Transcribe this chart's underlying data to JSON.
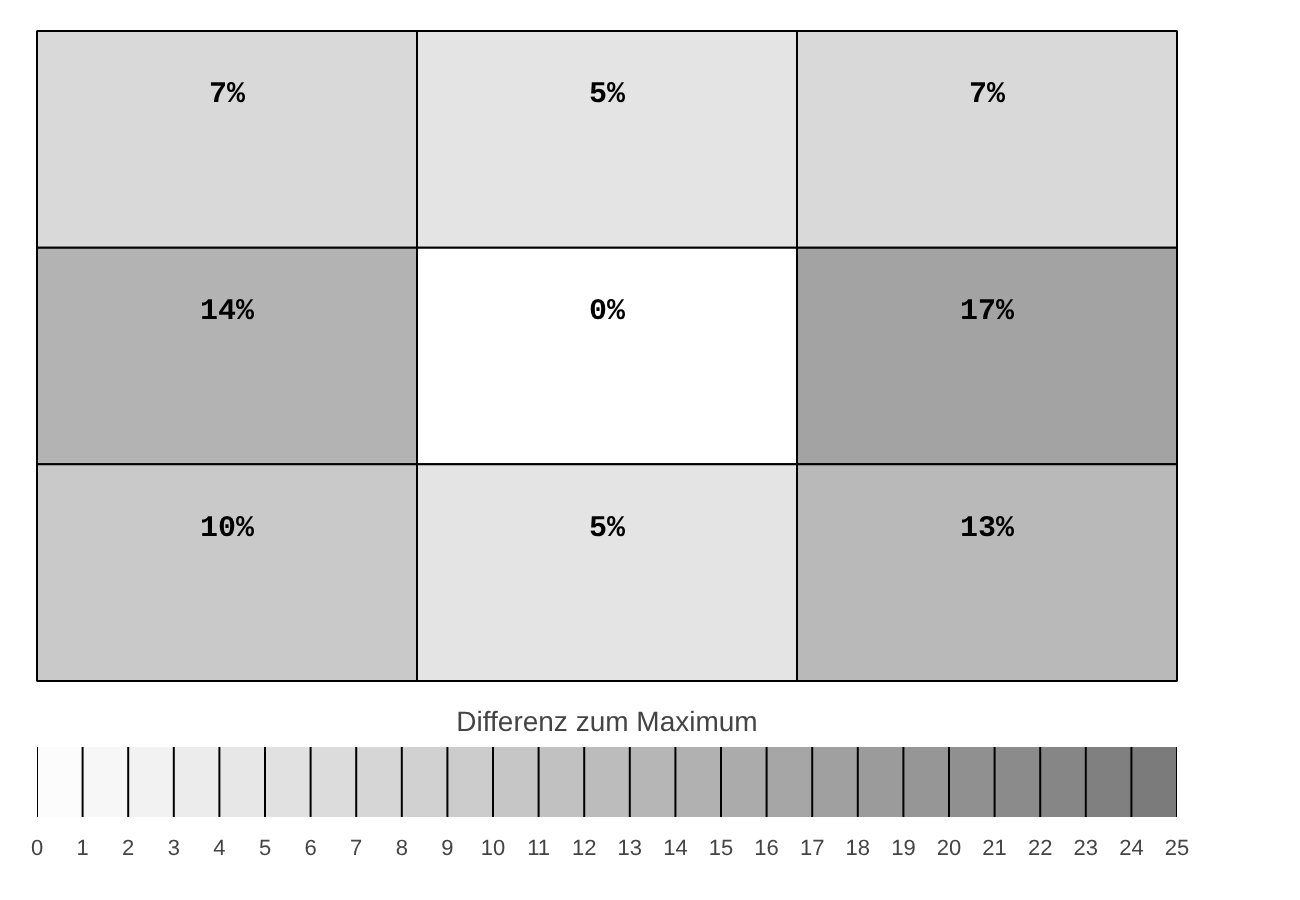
{
  "chart_data": {
    "type": "heatmap",
    "clabel": "Differenz zum Maximum",
    "categories": [
      null,
      null,
      null
    ],
    "y_categories": [
      null,
      null,
      null
    ],
    "cells": [
      [
        7,
        5,
        7
      ],
      [
        14,
        0,
        17
      ],
      [
        10,
        5,
        13
      ]
    ],
    "cell_labels": [
      [
        "7%",
        "5%",
        "7%"
      ],
      [
        "14%",
        "0%",
        "17%"
      ],
      [
        "10%",
        "5%",
        "13%"
      ]
    ],
    "clim": [
      0,
      25
    ],
    "cticks": [
      0,
      1,
      2,
      3,
      4,
      5,
      6,
      7,
      8,
      9,
      10,
      11,
      12,
      13,
      14,
      15,
      16,
      17,
      18,
      19,
      20,
      21,
      22,
      23,
      24,
      25
    ]
  }
}
